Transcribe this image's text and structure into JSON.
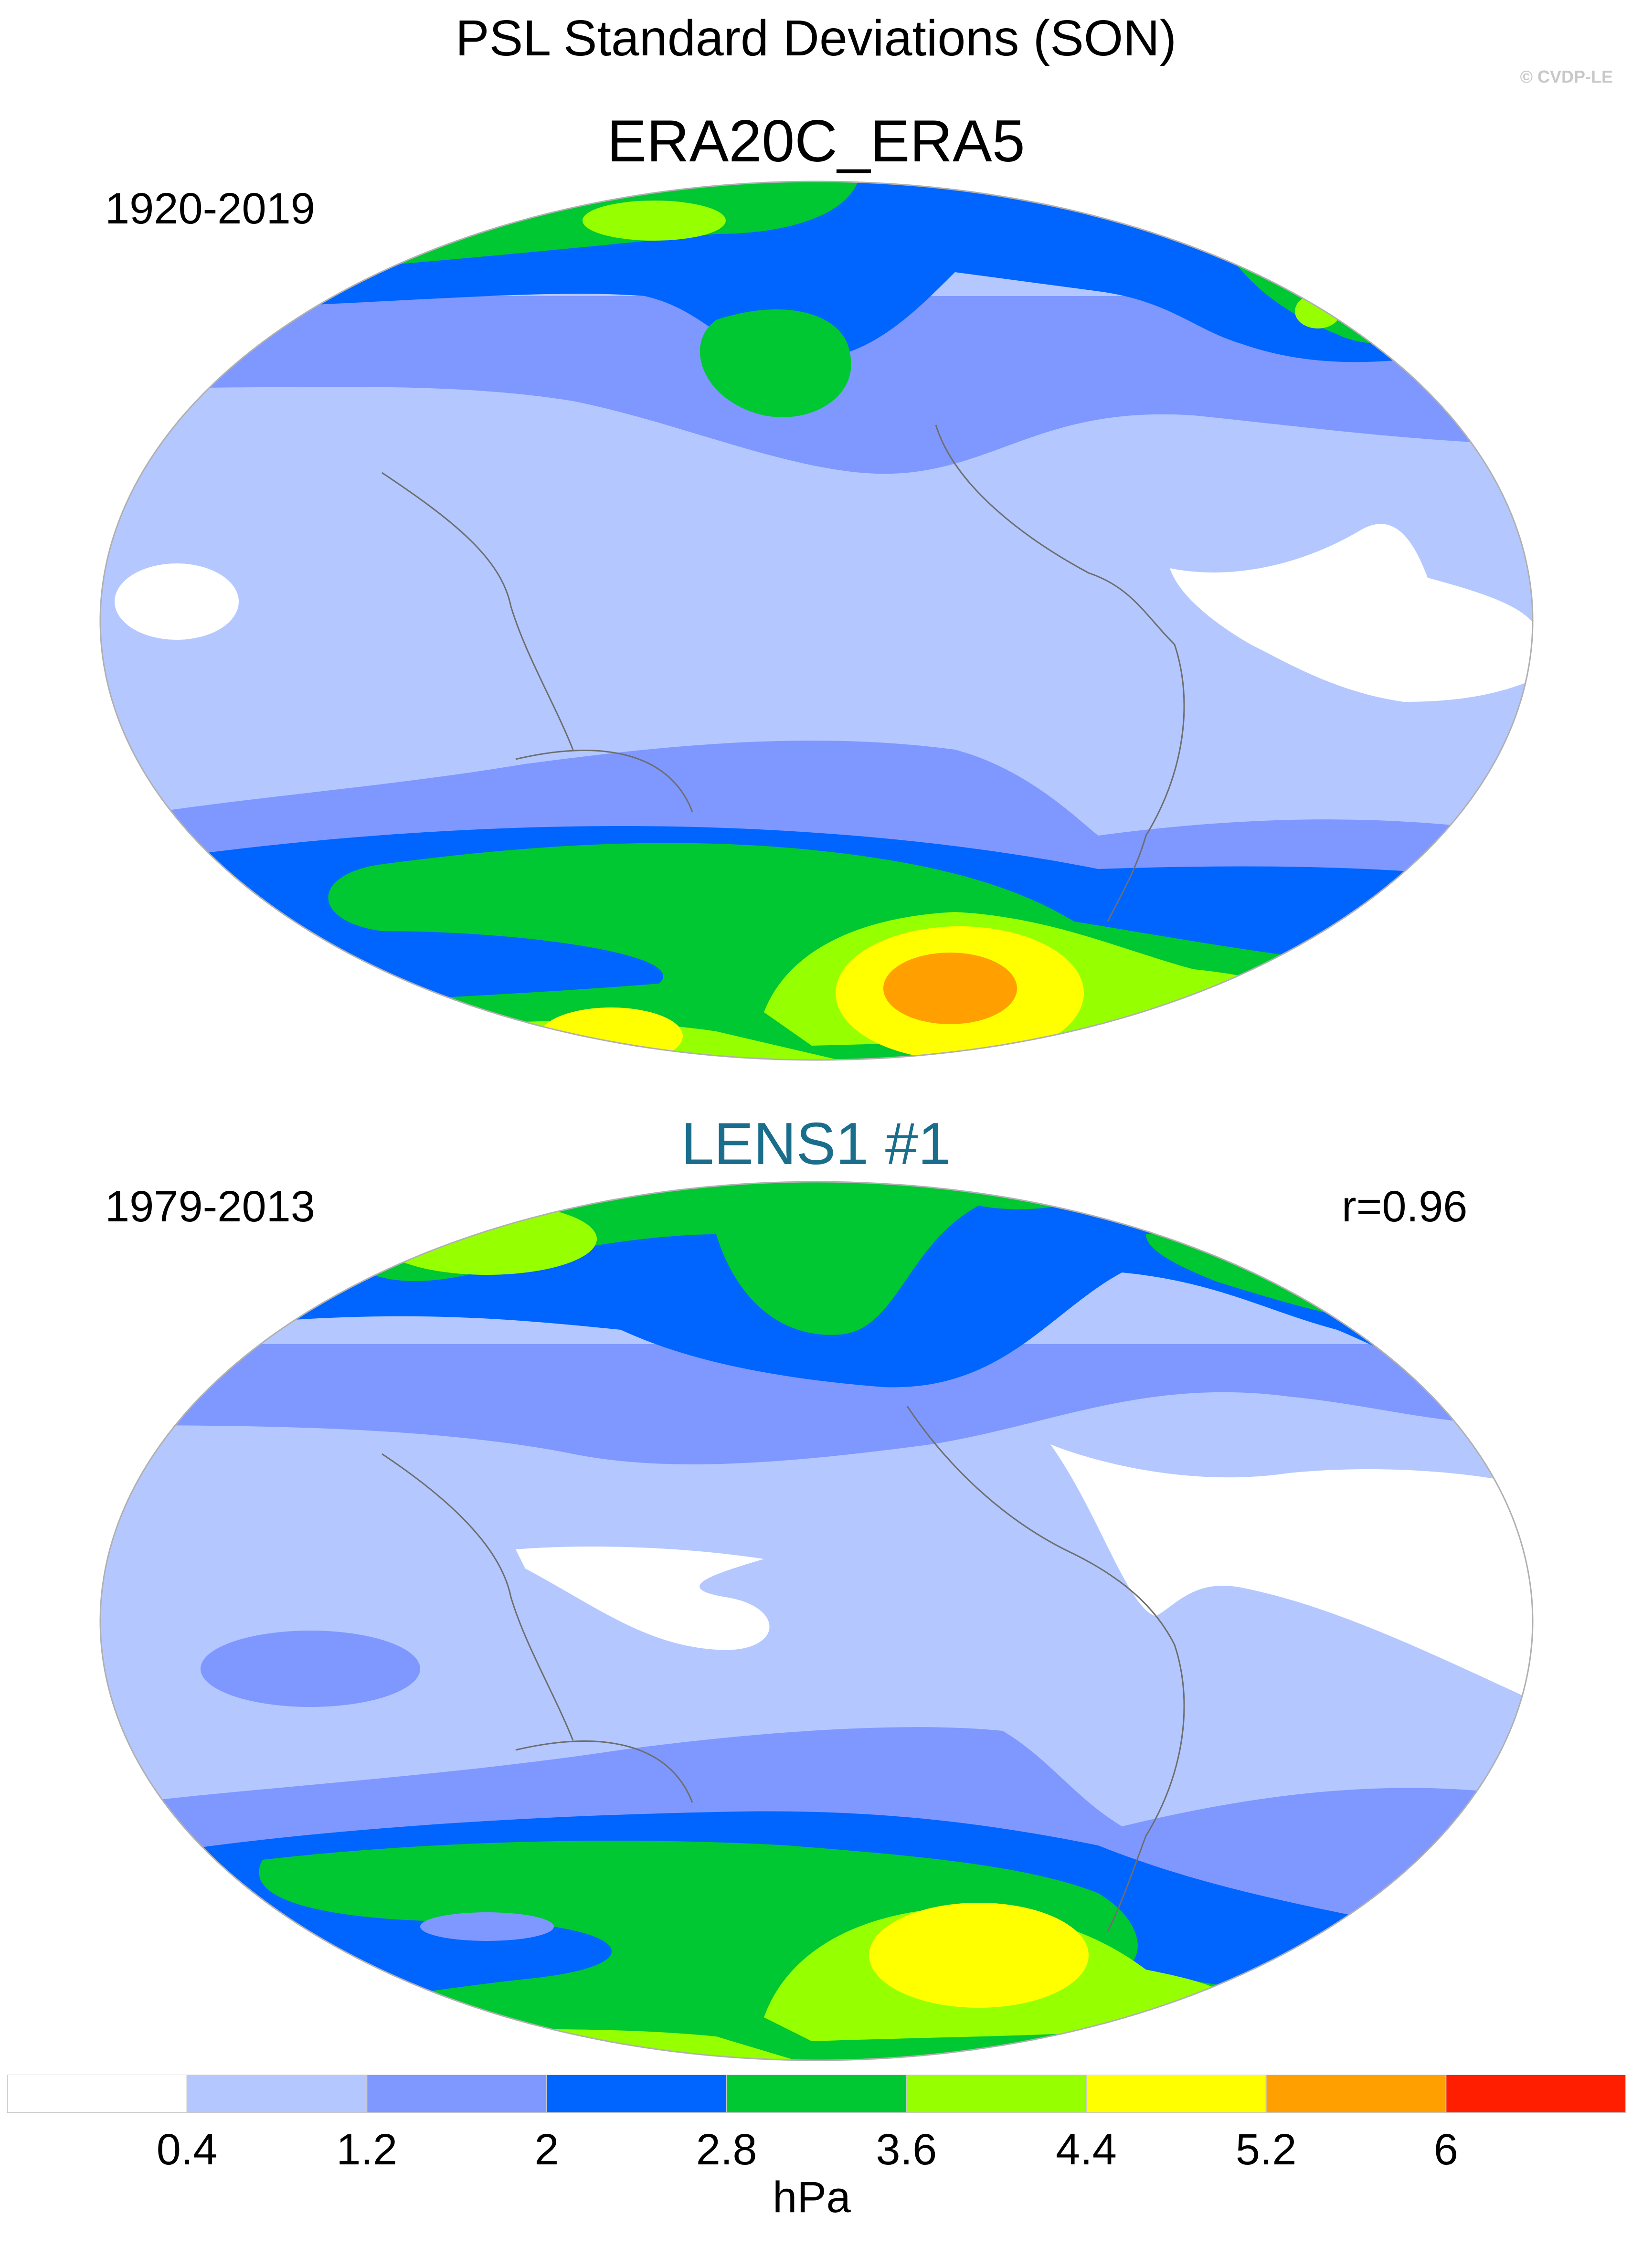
{
  "title": "PSL Standard Deviations (SON)",
  "copyright": "© CVDP-LE",
  "panels": [
    {
      "title": "ERA20C_ERA5",
      "period": "1920-2019",
      "corr": ""
    },
    {
      "title": "LENS1 #1",
      "period": "1979-2013",
      "corr": "r=0.96"
    }
  ],
  "colors": {
    "panel2_title": "#1a6e8c",
    "levels": [
      "#ffffff",
      "#b4c8ff",
      "#7e98ff",
      "#0064ff",
      "#00c832",
      "#96ff00",
      "#ffff00",
      "#ffa000",
      "#ff1e00"
    ]
  },
  "colorbar": {
    "ticks": [
      "0.4",
      "1.2",
      "2",
      "2.8",
      "3.6",
      "4.4",
      "5.2",
      "6"
    ],
    "units": "hPa"
  }
}
